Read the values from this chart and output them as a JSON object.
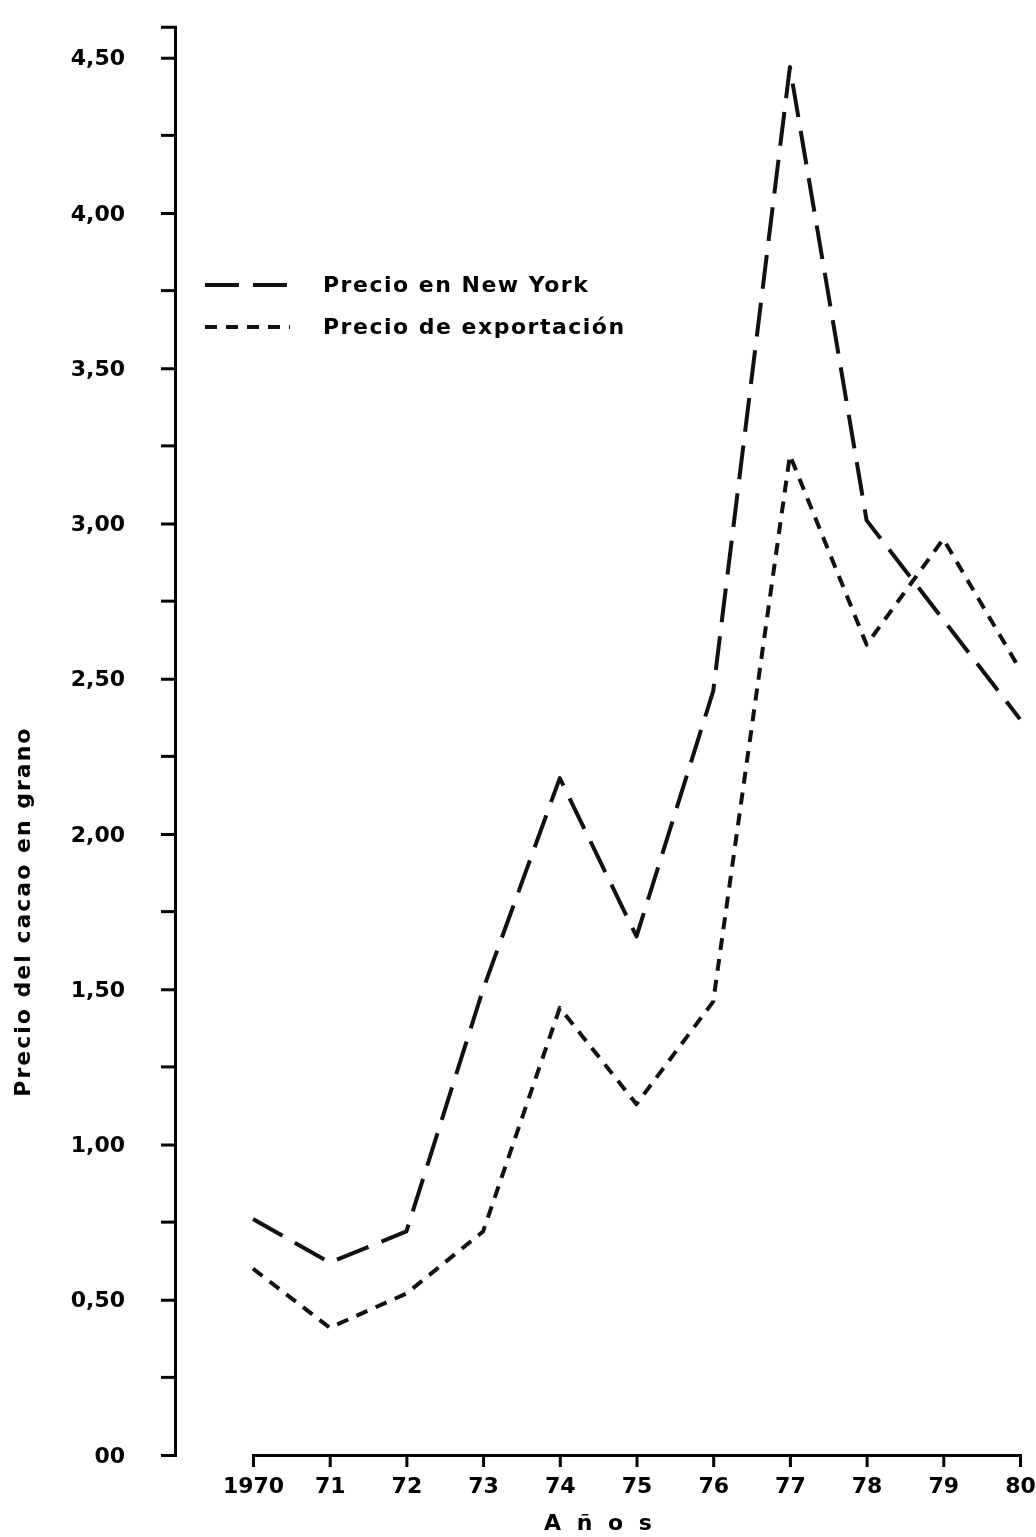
{
  "chart_data": {
    "type": "line",
    "xlabel": "A ñ o s",
    "ylabel": "Precio del cacao en grano",
    "x": [
      1970,
      1971,
      1972,
      1973,
      1974,
      1975,
      1976,
      1977,
      1978,
      1979,
      1980
    ],
    "series": [
      {
        "name": "Precio en New York",
        "color": "#111111",
        "line_style": "dashed",
        "values": [
          0.76,
          0.62,
          0.72,
          1.5,
          2.18,
          1.67,
          2.46,
          4.47,
          3.01,
          2.69,
          2.37
        ]
      },
      {
        "name": "Precio de exportación",
        "color": "#111111",
        "line_style": "dotted",
        "values": [
          0.6,
          0.41,
          0.52,
          0.72,
          1.44,
          1.13,
          1.46,
          3.22,
          2.61,
          2.95,
          2.53
        ]
      }
    ],
    "xlim": [
      1970,
      1980
    ],
    "xticks": [
      {
        "value": 1970,
        "label": "1970"
      },
      {
        "value": 1971,
        "label": "71"
      },
      {
        "value": 1972,
        "label": "72"
      },
      {
        "value": 1973,
        "label": "73"
      },
      {
        "value": 1974,
        "label": "74"
      },
      {
        "value": 1975,
        "label": "75"
      },
      {
        "value": 1976,
        "label": "76"
      },
      {
        "value": 1977,
        "label": "77"
      },
      {
        "value": 1978,
        "label": "78"
      },
      {
        "value": 1979,
        "label": "79"
      },
      {
        "value": 1980,
        "label": "80"
      }
    ],
    "ylim": [
      0,
      4.6
    ],
    "yticks": [
      {
        "value": 0,
        "label": "00"
      },
      {
        "value": 0.5,
        "label": "0,50"
      },
      {
        "value": 1,
        "label": "1,00"
      },
      {
        "value": 1.5,
        "label": "1,50"
      },
      {
        "value": 2,
        "label": "2,00"
      },
      {
        "value": 2.5,
        "label": "2,50"
      },
      {
        "value": 3,
        "label": "3,00"
      },
      {
        "value": 3.5,
        "label": "3,50"
      },
      {
        "value": 4,
        "label": "4,00"
      },
      {
        "value": 4.5,
        "label": "4,50"
      }
    ],
    "legend": "top left",
    "grid": false
  }
}
